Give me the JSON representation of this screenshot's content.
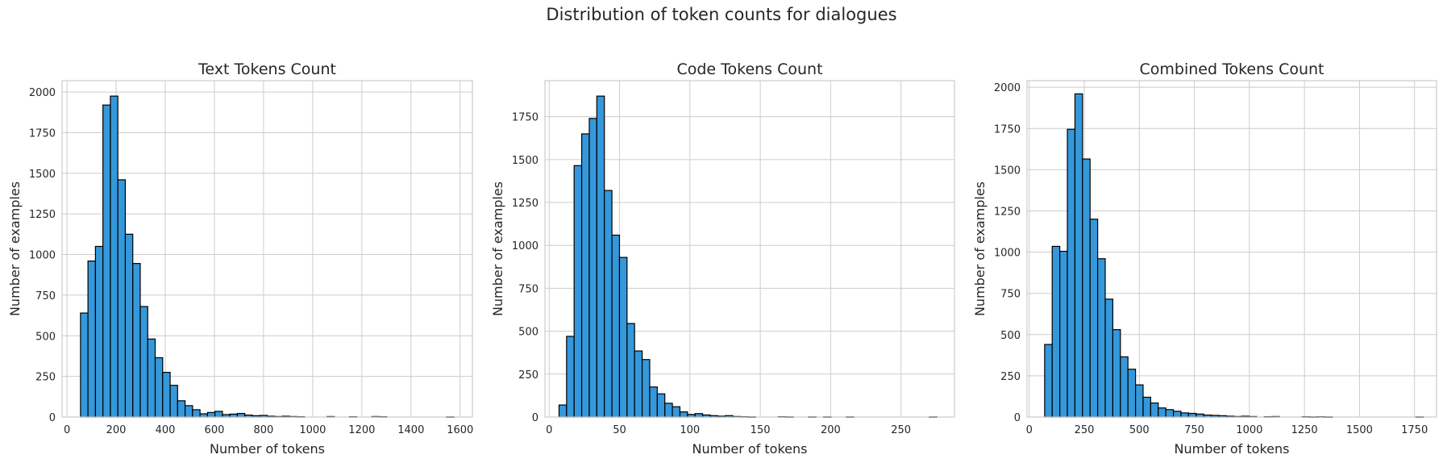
{
  "figure": {
    "title": "Distribution of token counts for dialogues"
  },
  "colors": {
    "bar": "#3498db",
    "edge": "#000000",
    "grid": "#cccccc",
    "text": "#262626"
  },
  "chart_data": [
    {
      "type": "bar",
      "title": "Text Tokens Count",
      "xlabel": "Number of tokens",
      "ylabel": "Number of examples",
      "xlim": [
        -20,
        1650
      ],
      "ylim": [
        0,
        2070
      ],
      "xticks": [
        0,
        200,
        400,
        600,
        800,
        1000,
        1200,
        1400,
        1600
      ],
      "yticks": [
        0,
        250,
        500,
        750,
        1000,
        1250,
        1500,
        1750,
        2000
      ],
      "grid": true,
      "bin_start": 55,
      "bin_width": 30.4,
      "values": [
        640,
        960,
        1050,
        1920,
        1975,
        1460,
        1125,
        945,
        680,
        480,
        365,
        275,
        195,
        100,
        70,
        45,
        20,
        28,
        35,
        15,
        18,
        22,
        12,
        8,
        10,
        5,
        3,
        5,
        3,
        2,
        0,
        0,
        0,
        3,
        0,
        0,
        2,
        0,
        0,
        3,
        2,
        0,
        0,
        0,
        0,
        0,
        0,
        0,
        0,
        1
      ]
    },
    {
      "type": "bar",
      "title": "Code Tokens Count",
      "xlabel": "Number of tokens",
      "ylabel": "Number of examples",
      "xlim": [
        -3,
        288
      ],
      "ylim": [
        0,
        1960
      ],
      "xticks": [
        0,
        50,
        100,
        150,
        200,
        250
      ],
      "yticks": [
        0,
        250,
        500,
        750,
        1000,
        1250,
        1500,
        1750
      ],
      "grid": true,
      "bin_start": 7,
      "bin_width": 5.37,
      "values": [
        70,
        470,
        1465,
        1650,
        1740,
        1870,
        1320,
        1060,
        930,
        545,
        385,
        335,
        175,
        135,
        80,
        60,
        30,
        15,
        20,
        12,
        8,
        5,
        8,
        3,
        2,
        1,
        0,
        0,
        0,
        2,
        1,
        0,
        0,
        1,
        0,
        1,
        0,
        0,
        1,
        0,
        0,
        0,
        0,
        0,
        0,
        0,
        0,
        0,
        0,
        1
      ]
    },
    {
      "type": "bar",
      "title": "Combined Tokens Count",
      "xlabel": "Number of tokens",
      "ylabel": "Number of examples",
      "xlim": [
        -10,
        1850
      ],
      "ylim": [
        0,
        2040
      ],
      "xticks": [
        0,
        250,
        500,
        750,
        1000,
        1250,
        1500,
        1750
      ],
      "yticks": [
        0,
        250,
        500,
        750,
        1000,
        1250,
        1500,
        1750,
        2000
      ],
      "grid": true,
      "bin_start": 70,
      "bin_width": 34.4,
      "values": [
        440,
        1035,
        1005,
        1745,
        1960,
        1565,
        1200,
        960,
        715,
        530,
        365,
        290,
        195,
        120,
        85,
        55,
        45,
        35,
        25,
        22,
        18,
        12,
        10,
        8,
        5,
        3,
        5,
        3,
        0,
        2,
        3,
        0,
        0,
        0,
        2,
        1,
        2,
        1,
        0,
        0,
        0,
        0,
        0,
        0,
        0,
        0,
        0,
        0,
        0,
        1
      ]
    }
  ]
}
